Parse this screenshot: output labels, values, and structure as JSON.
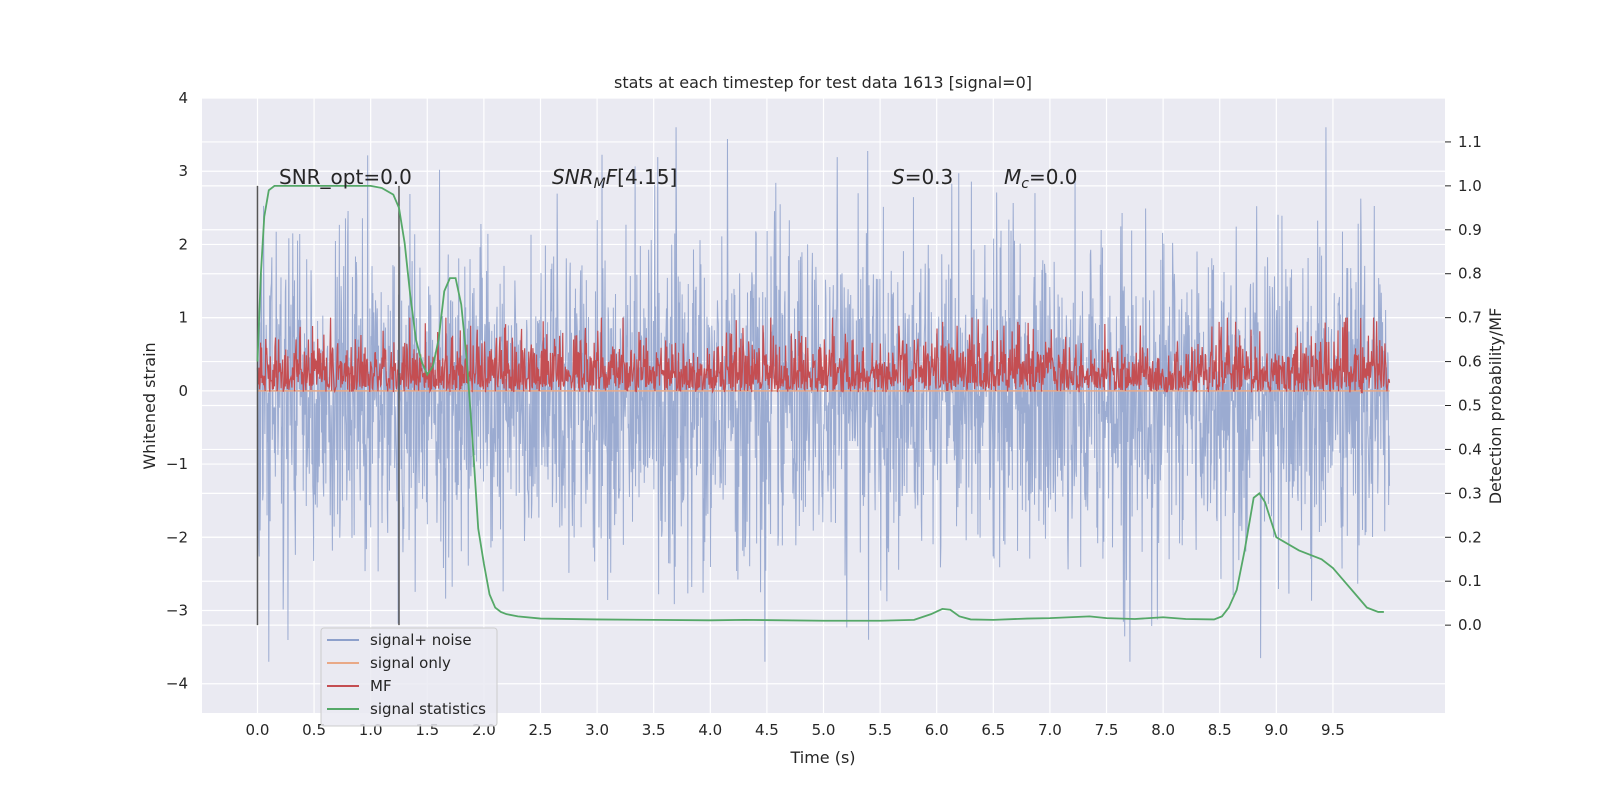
{
  "chart_data": {
    "type": "line",
    "title": "stats at each timestep for test data 1613 [signal=0]",
    "xlabel": "Time (s)",
    "ylabel_left": "Whitened strain",
    "ylabel_right": "Detection probability/MF",
    "xlim": [
      -0.49,
      10.49
    ],
    "ylim_left": [
      -4.4,
      4.0
    ],
    "ylim_right": [
      -0.2,
      1.2
    ],
    "x_ticks": [
      "0.0",
      "0.5",
      "1.0",
      "1.5",
      "2.0",
      "2.5",
      "3.0",
      "3.5",
      "4.0",
      "4.5",
      "5.0",
      "5.5",
      "6.0",
      "6.5",
      "7.0",
      "7.5",
      "8.0",
      "8.5",
      "9.0",
      "9.5"
    ],
    "y_ticks_left": [
      "4",
      "3",
      "2",
      "1",
      "0",
      "−1",
      "−2",
      "−3",
      "−4"
    ],
    "y_ticks_right": [
      "0.0",
      "0.1",
      "0.2",
      "0.3",
      "0.4",
      "0.5",
      "0.6",
      "0.7",
      "0.8",
      "0.9",
      "1.0",
      "1.1"
    ],
    "grid": true,
    "legend_position": "lower-left",
    "annotations": {
      "snr_opt": "SNR_opt=0.0",
      "snr_mf": "[4.15]",
      "s": "=0.3",
      "mc": "=0.0"
    },
    "series": [
      {
        "name": "signal+ noise",
        "color": "#8da0cb",
        "kind": "noise",
        "x_range": [
          0.0,
          10.0
        ],
        "center": -0.1,
        "typical_range": [
          -2.0,
          2.0
        ],
        "extremes": [
          -3.7,
          3.6
        ]
      },
      {
        "name": "signal only",
        "color": "#e9a987",
        "x_range": [
          0.0,
          10.0
        ],
        "values": [
          0.0,
          0.0
        ]
      },
      {
        "name": "MF",
        "color": "#c44e52",
        "kind": "noise",
        "axis": "right",
        "x_range": [
          0.0,
          10.0
        ],
        "base": 0.53,
        "typical_range": [
          0.53,
          0.64
        ],
        "extremes": [
          0.53,
          0.7
        ]
      },
      {
        "name": "signal statistics",
        "color": "#55a868",
        "axis": "right",
        "x": [
          0.0,
          0.03,
          0.06,
          0.1,
          0.15,
          0.2,
          0.3,
          0.5,
          0.8,
          1.0,
          1.1,
          1.2,
          1.25,
          1.3,
          1.35,
          1.4,
          1.45,
          1.5,
          1.55,
          1.6,
          1.65,
          1.7,
          1.75,
          1.8,
          1.85,
          1.9,
          1.95,
          2.0,
          2.05,
          2.1,
          2.15,
          2.2,
          2.3,
          2.5,
          3.0,
          3.5,
          4.0,
          4.3,
          5.0,
          5.5,
          5.8,
          5.95,
          6.05,
          6.12,
          6.2,
          6.3,
          6.5,
          6.8,
          7.0,
          7.35,
          7.5,
          7.75,
          8.0,
          8.2,
          8.45,
          8.52,
          8.58,
          8.65,
          8.72,
          8.8,
          8.85,
          8.9,
          9.0,
          9.2,
          9.4,
          9.5,
          9.6,
          9.7,
          9.8,
          9.9,
          9.95
        ],
        "values": [
          0.6,
          0.8,
          0.93,
          0.99,
          1.0,
          1.0,
          1.0,
          1.0,
          1.0,
          1.0,
          0.995,
          0.98,
          0.95,
          0.87,
          0.75,
          0.65,
          0.6,
          0.57,
          0.59,
          0.65,
          0.76,
          0.79,
          0.79,
          0.73,
          0.6,
          0.42,
          0.22,
          0.14,
          0.07,
          0.04,
          0.03,
          0.025,
          0.02,
          0.015,
          0.013,
          0.012,
          0.011,
          0.012,
          0.01,
          0.01,
          0.012,
          0.025,
          0.037,
          0.035,
          0.02,
          0.013,
          0.012,
          0.015,
          0.016,
          0.02,
          0.016,
          0.014,
          0.018,
          0.014,
          0.013,
          0.02,
          0.04,
          0.08,
          0.17,
          0.29,
          0.3,
          0.28,
          0.2,
          0.17,
          0.15,
          0.13,
          0.1,
          0.07,
          0.04,
          0.03,
          0.03
        ]
      }
    ],
    "vertical_lines_x": [
      0.0,
      1.25
    ]
  }
}
